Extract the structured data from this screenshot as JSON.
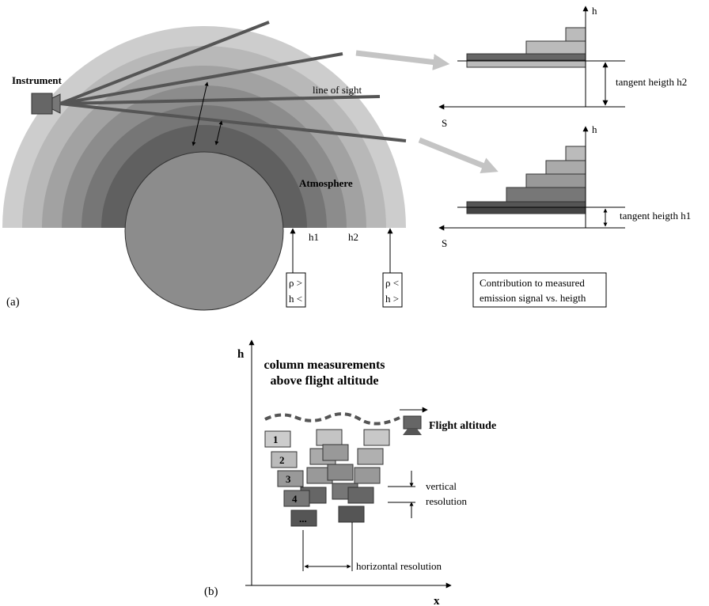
{
  "panel_a": {
    "label": "(a)",
    "instrument": "Instrument",
    "line_of_sight": "line of sight",
    "atmosphere": "Atmosphere",
    "h1": "h1",
    "h2": "h2",
    "box_left": [
      "ρ >",
      "h <"
    ],
    "box_right": [
      "ρ <",
      "h >"
    ],
    "upper_profile": {
      "h_axis": "h",
      "s_axis": "S",
      "tangent": "tangent heigth h2"
    },
    "lower_profile": {
      "h_axis": "h",
      "s_axis": "S",
      "tangent": "tangent heigth h1"
    },
    "caption": [
      "Contribution to measured",
      "emission signal vs. heigth"
    ]
  },
  "panel_b": {
    "label": "(b)",
    "h_axis": "h",
    "x_axis": "x",
    "title": [
      "column measurements",
      "above flight altitude"
    ],
    "flight": "Flight altitude",
    "boxes": [
      "1",
      "2",
      "3",
      "4",
      "..."
    ],
    "vertical": [
      "vertical",
      "resolution"
    ],
    "horizontal": "horizontal resolution"
  }
}
